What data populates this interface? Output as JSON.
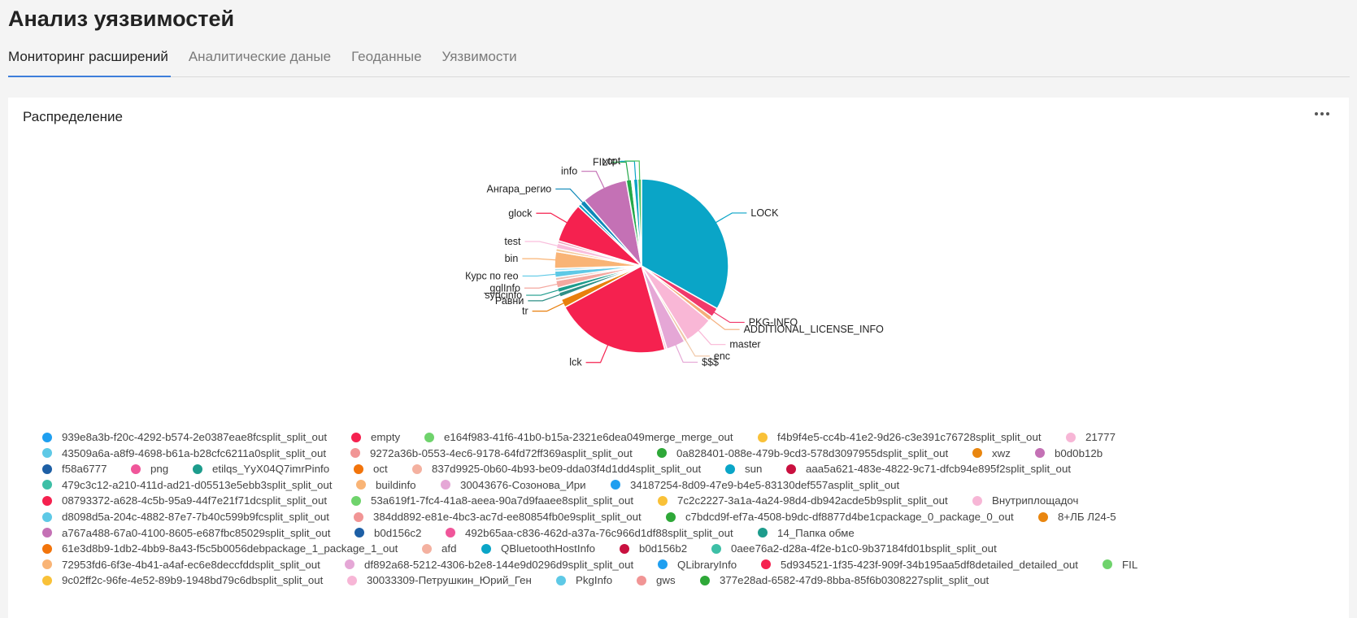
{
  "page": {
    "title": "Анализ уязвимостей"
  },
  "tabs": [
    {
      "label": "Мониторинг расширений",
      "active": true
    },
    {
      "label": "Аналитические даные",
      "active": false
    },
    {
      "label": "Геоданные",
      "active": false
    },
    {
      "label": "Уязвимости",
      "active": false
    }
  ],
  "widget": {
    "title": "Распределение",
    "menu_icon": "more-horizontal-icon"
  },
  "chart_data": {
    "type": "pie",
    "slices": [
      {
        "label": "LOCK",
        "value": 34.0,
        "color": "#0aa5c7"
      },
      {
        "label": "PKG-INFO",
        "value": 1.8,
        "color": "#f0396b"
      },
      {
        "label": "ADDITIONAL_LICENSE_INFO",
        "value": 0.9,
        "color": "#f4ad7a"
      },
      {
        "label": "master",
        "value": 5.5,
        "color": "#f9b7d6"
      },
      {
        "label": "enc",
        "value": 0.6,
        "color": "#f0c8a8"
      },
      {
        "label": "$$$",
        "value": 3.6,
        "color": "#e5a7d6"
      },
      {
        "label": "",
        "value": 0.4,
        "color": "#f7bcd0"
      },
      {
        "label": "lck",
        "value": 22.0,
        "color": "#f5214f"
      },
      {
        "label": "tr",
        "value": 1.6,
        "color": "#e87f0c"
      },
      {
        "label": "",
        "value": 0.5,
        "color": "#ffffff"
      },
      {
        "label": "Равни",
        "value": 0.9,
        "color": "#2d8f86"
      },
      {
        "label": "syncinfo",
        "value": 0.9,
        "color": "#1d9c8c"
      },
      {
        "label": "_gglInfo",
        "value": 1.4,
        "color": "#f4a8a0"
      },
      {
        "label": "",
        "value": 0.6,
        "color": "#e8c0b6"
      },
      {
        "label": "Курс по гео",
        "value": 1.2,
        "color": "#5ec9e6"
      },
      {
        "label": "",
        "value": 0.5,
        "color": "#a8e0f0"
      },
      {
        "label": "bin",
        "value": 3.2,
        "color": "#f9b476"
      },
      {
        "label": "",
        "value": 0.6,
        "color": "#f5c99b"
      },
      {
        "label": "test",
        "value": 1.0,
        "color": "#f9bedc"
      },
      {
        "label": "",
        "value": 0.5,
        "color": "#f2a4c0"
      },
      {
        "label": "glock",
        "value": 7.5,
        "color": "#f5214f"
      },
      {
        "label": "",
        "value": 0.6,
        "color": "#0aa5c7"
      },
      {
        "label": "Ангара_регио",
        "value": 1.0,
        "color": "#0d88b8"
      },
      {
        "label": "info",
        "value": 8.8,
        "color": "#c471b5"
      },
      {
        "label": "FIL",
        "value": 1.0,
        "color": "#24a84a"
      },
      {
        "label": "",
        "value": 0.4,
        "color": "#ffffff"
      },
      {
        "label": "xtc",
        "value": 0.8,
        "color": "#0aa5c7"
      },
      {
        "label": "cpt",
        "value": 0.7,
        "color": "#51c45f"
      }
    ]
  },
  "legend": [
    [
      {
        "label": "939e8a3b-f20c-4292-b574-2e0387eae8fcsplit_split_out",
        "color": "#1f9ff0"
      },
      {
        "label": "empty",
        "color": "#f5214f"
      },
      {
        "label": "e164f983-41f6-41b0-b15a-2321e6dea049merge_merge_out",
        "color": "#6fd36c"
      },
      {
        "label": "f4b9f4e5-cc4b-41e2-9d26-c3e391c76728split_split_out",
        "color": "#f9c138"
      },
      {
        "label": "21777",
        "color": "#f7b6d6"
      }
    ],
    [
      {
        "label": "43509a6a-a8f9-4698-b61a-b28cfc6211a0split_split_out",
        "color": "#5ec9e6"
      },
      {
        "label": "9272a36b-0553-4ec6-9178-64fd72ff369asplit_split_out",
        "color": "#f19595"
      },
      {
        "label": "0a828401-088e-479b-9cd3-578d3097955dsplit_split_out",
        "color": "#2ea838"
      },
      {
        "label": "xwz",
        "color": "#e9860f"
      },
      {
        "label": "b0d0b12b",
        "color": "#c471b5"
      }
    ],
    [
      {
        "label": "f58a6777",
        "color": "#1d5fa5"
      },
      {
        "label": "png",
        "color": "#f0569a"
      },
      {
        "label": "etilqs_YyX04Q7imrPinfo",
        "color": "#1d9c8c"
      },
      {
        "label": "oct",
        "color": "#f2740b"
      },
      {
        "label": "837d9925-0b60-4b93-be09-dda03f4d1dd4split_split_out",
        "color": "#f4b1a0"
      },
      {
        "label": "sun",
        "color": "#0aa5c7"
      },
      {
        "label": "aaa5a621-483e-4822-9c71-dfcb94e895f2split_split_out",
        "color": "#c9103f"
      }
    ],
    [
      {
        "label": "479c3c12-a210-411d-ad21-d05513e5ebb3split_split_out",
        "color": "#3dbfa6"
      },
      {
        "label": "buildinfo",
        "color": "#f9b476"
      },
      {
        "label": "30043676-Созонова_Ири",
        "color": "#e5a7d6"
      },
      {
        "label": "34187254-8d09-47e9-b4e5-83130def557asplit_split_out",
        "color": "#1f9ff0"
      }
    ],
    [
      {
        "label": "08793372-a628-4c5b-95a9-44f7e21f71dcsplit_split_out",
        "color": "#f5214f"
      },
      {
        "label": "53a619f1-7fc4-41a8-aeea-90a7d9faaee8split_split_out",
        "color": "#6fd36c"
      },
      {
        "label": "7c2c2227-3a1a-4a24-98d4-db942acde5b9split_split_out",
        "color": "#f9c138"
      },
      {
        "label": "Внутриплощадоч",
        "color": "#f7b6d6"
      }
    ],
    [
      {
        "label": "d8098d5a-204c-4882-87e7-7b40c599b9fcsplit_split_out",
        "color": "#5ec9e6"
      },
      {
        "label": "384dd892-e81e-4bc3-ac7d-ee80854fb0e9split_split_out",
        "color": "#f19595"
      },
      {
        "label": "c7bdcd9f-ef7a-4508-b9dc-df8877d4be1cpackage_0_package_0_out",
        "color": "#2ea838"
      },
      {
        "label": "8+ЛБ Л24-5",
        "color": "#e9860f"
      }
    ],
    [
      {
        "label": "a767a488-67a0-4100-8605-e687fbc85029split_split_out",
        "color": "#c471b5"
      },
      {
        "label": "b0d156c2",
        "color": "#1d5fa5"
      },
      {
        "label": "492b65aa-c836-462d-a37a-76c966d1df88split_split_out",
        "color": "#f0569a"
      },
      {
        "label": "14_Папка обме",
        "color": "#1d9c8c"
      }
    ],
    [
      {
        "label": "61e3d8b9-1db2-4bb9-8a43-f5c5b0056debpackage_1_package_1_out",
        "color": "#f2740b"
      },
      {
        "label": "afd",
        "color": "#f4b1a0"
      },
      {
        "label": "QBluetoothHostInfo",
        "color": "#0aa5c7"
      },
      {
        "label": "b0d156b2",
        "color": "#c9103f"
      },
      {
        "label": "0aee76a2-d28a-4f2e-b1c0-9b37184fd01bsplit_split_out",
        "color": "#3dbfa6"
      }
    ],
    [
      {
        "label": "72953fd6-6f3e-4b41-a4af-ec6e8deccfddsplit_split_out",
        "color": "#f9b476"
      },
      {
        "label": "df892a68-5212-4306-b2e8-144e9d0296d9split_split_out",
        "color": "#e5a7d6"
      },
      {
        "label": "QLibraryInfo",
        "color": "#1f9ff0"
      },
      {
        "label": "5d934521-1f35-423f-909f-34b195aa5df8detailed_detailed_out",
        "color": "#f5214f"
      },
      {
        "label": "FIL",
        "color": "#6fd36c"
      }
    ],
    [
      {
        "label": "9c02ff2c-96fe-4e52-89b9-1948bd79c6dbsplit_split_out",
        "color": "#f9c138"
      },
      {
        "label": "30033309-Петрушкин_Юрий_Ген",
        "color": "#f7b6d6"
      },
      {
        "label": "PkgInfo",
        "color": "#5ec9e6"
      },
      {
        "label": "gws",
        "color": "#f19595"
      },
      {
        "label": "377e28ad-6582-47d9-8bba-85f6b0308227split_split_out",
        "color": "#2ea838"
      }
    ]
  ]
}
